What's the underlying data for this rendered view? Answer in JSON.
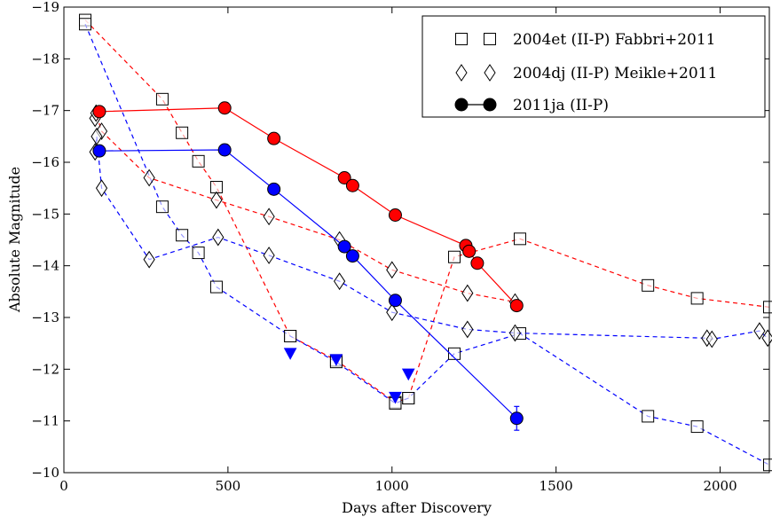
{
  "chart_data": {
    "type": "scatter",
    "title": "",
    "xlabel": "Days after Discovery",
    "ylabel": "Absolute Magnitude",
    "xlim": [
      0,
      2150
    ],
    "ylim": [
      -10,
      -19
    ],
    "y_inverted": true,
    "grid": false,
    "legend_position": "top-right",
    "x_ticks": [
      0,
      500,
      1000,
      1500,
      2000
    ],
    "y_ticks": [
      -10,
      -11,
      -12,
      -13,
      -14,
      -15,
      -16,
      -17,
      -18,
      -19
    ],
    "x_tick_labels": [
      "0",
      "500",
      "1000",
      "1500",
      "2000"
    ],
    "y_tick_labels": [
      "−10",
      "−11",
      "−12",
      "−13",
      "−14",
      "−15",
      "−16",
      "−17",
      "−18",
      "−19"
    ],
    "legend": [
      {
        "label": "2004et (II-P) Fabbri+2011",
        "marker": "square"
      },
      {
        "label": "2004dj (II-P) Meikle+2011",
        "marker": "diamond"
      },
      {
        "label": "2011ja (II-P)",
        "marker": "circle"
      }
    ],
    "series": [
      {
        "name": "2004et (II-P) Fabbri+2011",
        "band": "red",
        "color": "#ff0000",
        "marker": "square",
        "style": "dashed",
        "x": [
          65,
          300,
          360,
          410,
          465,
          690,
          830,
          1010,
          1050,
          1190,
          1390,
          1780,
          1930,
          2150
        ],
        "y": [
          -18.75,
          -17.22,
          -16.57,
          -16.02,
          -15.52,
          -12.64,
          -12.17,
          -11.36,
          -11.44,
          -14.17,
          -14.52,
          -13.62,
          -13.37,
          -13.2
        ]
      },
      {
        "name": "2004et (II-P) Fabbri+2011",
        "band": "blue",
        "color": "#0000ff",
        "marker": "square",
        "style": "dashed",
        "x": [
          65,
          300,
          360,
          410,
          465,
          690,
          830,
          1010,
          1050,
          1190,
          1390,
          1780,
          1930,
          2150
        ],
        "y": [
          -18.67,
          -15.14,
          -14.59,
          -14.25,
          -13.59,
          -12.64,
          -12.14,
          -11.34,
          -11.44,
          -12.3,
          -12.69,
          -11.09,
          -10.89,
          -10.15
        ]
      },
      {
        "name": "2004dj (II-P) Meikle+2011",
        "band": "red",
        "color": "#ff0000",
        "marker": "diamond",
        "style": "dashed",
        "x": [
          95,
          98,
          115,
          260,
          465,
          625,
          840,
          1000,
          1230,
          1375
        ],
        "y": [
          -16.85,
          -16.95,
          -16.6,
          -15.7,
          -15.27,
          -14.95,
          -14.5,
          -13.92,
          -13.47,
          -13.3
        ]
      },
      {
        "name": "2004dj (II-P) Meikle+2011",
        "band": "blue",
        "color": "#0000ff",
        "marker": "diamond",
        "style": "dashed",
        "x": [
          95,
          100,
          115,
          260,
          470,
          625,
          840,
          1000,
          1230,
          1375,
          1960,
          1975,
          2120,
          2145
        ],
        "y": [
          -16.2,
          -16.5,
          -15.5,
          -14.12,
          -14.55,
          -14.2,
          -13.7,
          -13.1,
          -12.77,
          -12.7,
          -12.6,
          -12.58,
          -12.74,
          -12.6
        ]
      },
      {
        "name": "2011ja (II-P)",
        "band": "red",
        "color": "#ff0000",
        "marker": "circle",
        "style": "solid",
        "x": [
          108,
          490,
          640,
          855,
          880,
          1010,
          1225,
          1235,
          1260,
          1380
        ],
        "y": [
          -16.98,
          -17.05,
          -16.46,
          -15.7,
          -15.55,
          -14.98,
          -14.39,
          -14.28,
          -14.05,
          -13.23
        ]
      },
      {
        "name": "2011ja (II-P)",
        "band": "blue",
        "color": "#0000ff",
        "marker": "circle",
        "style": "solid",
        "x": [
          108,
          490,
          640,
          855,
          880,
          1010,
          1380
        ],
        "y": [
          -16.22,
          -16.24,
          -15.48,
          -14.37,
          -14.19,
          -13.33,
          -11.05
        ],
        "error_bar_x": 1380,
        "error_bar_y": [
          -10.82,
          -11.28
        ]
      },
      {
        "name": "upper limits",
        "band": "blue",
        "color": "#0000ff",
        "marker": "triangle-down",
        "style": "none",
        "x": [
          690,
          830,
          1010,
          1050
        ],
        "y": [
          -12.3,
          -12.18,
          -11.45,
          -11.9
        ]
      }
    ]
  }
}
